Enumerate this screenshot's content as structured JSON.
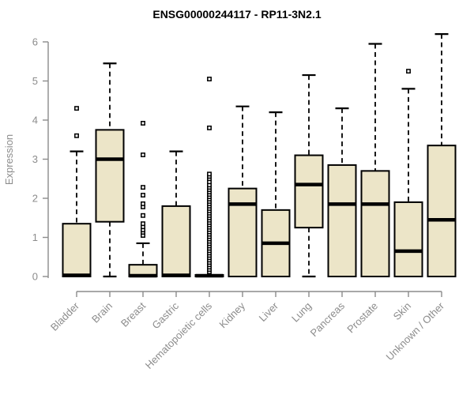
{
  "page": {
    "title": "ENSG00000244117 - RP11-3N2.1"
  },
  "chart_data": {
    "type": "boxplot",
    "title": "ENSG00000244117 - RP11-3N2.1",
    "xlabel": "",
    "ylabel": "Expression",
    "ylim": [
      0,
      6.3
    ],
    "yticks": [
      0,
      1,
      2,
      3,
      4,
      5,
      6
    ],
    "grid": false,
    "legend": "none",
    "x_label_rotation_deg": 45,
    "categories": [
      "Bladder",
      "Brain",
      "Breast",
      "Gastric",
      "Hematopoietic cells",
      "Kidney",
      "Liver",
      "Lung",
      "Pancreas",
      "Prostate",
      "Skin",
      "Unknown / Other"
    ],
    "series": [
      {
        "name": "Bladder",
        "low": 0,
        "q1": 0,
        "median": 0.03,
        "q3": 1.35,
        "high": 3.2,
        "outliers": [
          3.6,
          4.3
        ]
      },
      {
        "name": "Brain",
        "low": 0,
        "q1": 1.4,
        "median": 3.0,
        "q3": 3.75,
        "high": 5.45,
        "outliers": []
      },
      {
        "name": "Breast",
        "low": 0,
        "q1": 0,
        "median": 0.02,
        "q3": 0.3,
        "high": 0.85,
        "outliers": [
          1.05,
          1.13,
          1.19,
          1.27,
          1.35,
          1.56,
          1.78,
          1.86,
          2.08,
          2.28,
          3.11,
          3.92
        ]
      },
      {
        "name": "Gastric",
        "low": 0,
        "q1": 0,
        "median": 0.03,
        "q3": 1.8,
        "high": 3.2,
        "outliers": []
      },
      {
        "name": "Hematopoietic cells",
        "low": 0,
        "q1": 0,
        "median": 0.02,
        "q3": 0.04,
        "high": 0.04,
        "outliers": [
          0.12,
          0.18,
          0.24,
          0.3,
          0.36,
          0.42,
          0.48,
          0.54,
          0.6,
          0.66,
          0.72,
          0.78,
          0.84,
          0.9,
          0.96,
          1.02,
          1.08,
          1.14,
          1.2,
          1.26,
          1.32,
          1.38,
          1.44,
          1.5,
          1.56,
          1.62,
          1.68,
          1.74,
          1.8,
          1.86,
          1.92,
          1.98,
          2.04,
          2.1,
          2.16,
          2.22,
          2.28,
          2.34,
          2.42,
          2.5,
          2.56,
          2.62,
          3.8,
          5.05
        ]
      },
      {
        "name": "Kidney",
        "low": 0,
        "q1": 0,
        "median": 1.85,
        "q3": 2.25,
        "high": 4.35,
        "outliers": []
      },
      {
        "name": "Liver",
        "low": 0,
        "q1": 0,
        "median": 0.85,
        "q3": 1.7,
        "high": 4.2,
        "outliers": []
      },
      {
        "name": "Lung",
        "low": 0,
        "q1": 1.25,
        "median": 2.35,
        "q3": 3.1,
        "high": 5.15,
        "outliers": []
      },
      {
        "name": "Pancreas",
        "low": 0,
        "q1": 0,
        "median": 1.85,
        "q3": 2.85,
        "high": 4.3,
        "outliers": []
      },
      {
        "name": "Prostate",
        "low": 0,
        "q1": 0,
        "median": 1.85,
        "q3": 2.7,
        "high": 5.95,
        "outliers": []
      },
      {
        "name": "Skin",
        "low": 0,
        "q1": 0,
        "median": 0.65,
        "q3": 1.9,
        "high": 4.8,
        "outliers": [
          5.25
        ]
      },
      {
        "name": "Unknown / Other",
        "low": 0,
        "q1": 0,
        "median": 1.45,
        "q3": 3.35,
        "high": 6.2,
        "outliers": []
      }
    ],
    "colors": {
      "box_fill": "#ece5c8",
      "box_border": "#000000",
      "median": "#000000",
      "whisker": "#000000",
      "outlier_fill": "#ffffff",
      "outlier_border": "#000000",
      "axis": "#8c8c8c",
      "title": "#000000",
      "background": "#ffffff"
    }
  }
}
